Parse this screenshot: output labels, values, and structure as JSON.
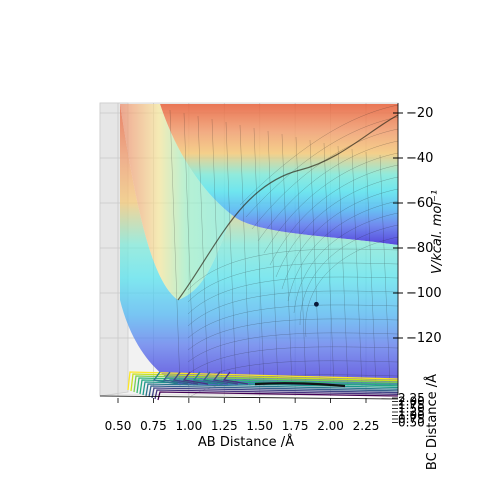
{
  "chart_data": {
    "type": "surface3d",
    "xlabel": "AB Distance /Å",
    "ylabel": "BC Distance /Å",
    "zlabel": "V/kcal. mol⁻¹",
    "x_ticks": [
      "0.50",
      "0.75",
      "1.00",
      "1.25",
      "1.50",
      "1.75",
      "2.00",
      "2.25"
    ],
    "y_ticks": [
      "0.50",
      "0.75",
      "1.00",
      "1.25",
      "1.50",
      "1.75",
      "2.00",
      "2.25"
    ],
    "z_ticks": [
      "−20",
      "−40",
      "−60",
      "−80",
      "−100",
      "−120"
    ],
    "xlim": [
      0.4,
      2.4
    ],
    "ylim": [
      0.4,
      2.4
    ],
    "zlim": [
      -130,
      -20
    ],
    "colormap": "jet",
    "contour_colormap": "viridis",
    "marker": {
      "x": 1.9,
      "z": -105
    }
  }
}
